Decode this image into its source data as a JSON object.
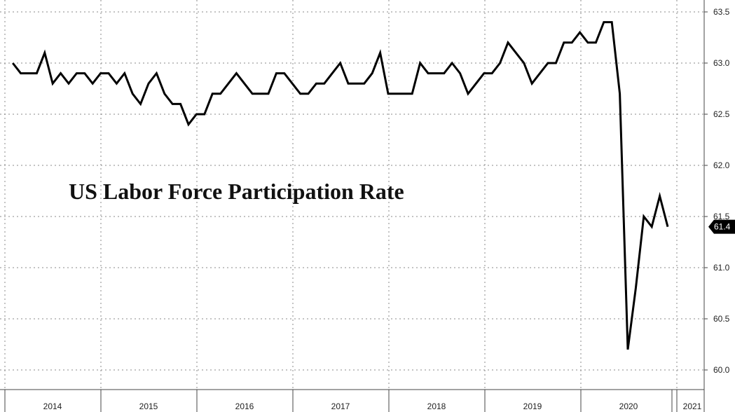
{
  "chart_data": {
    "type": "line",
    "title": "US Labor Force Participation Rate",
    "xlabel": "",
    "ylabel": "",
    "ylim": [
      59.95,
      63.6
    ],
    "yticks": [
      "60.0",
      "60.5",
      "61.0",
      "61.5",
      "62.0",
      "62.5",
      "63.0",
      "63.5"
    ],
    "xtick_labels": [
      "2014",
      "2015",
      "2016",
      "2017",
      "2018",
      "2019",
      "2020",
      "2021"
    ],
    "grid": true,
    "last_value_label": "61.4",
    "colors": {
      "line": "#000000",
      "grid": "#888888",
      "label_bg": "#000000"
    },
    "series": [
      {
        "x": [
          "2013-11",
          "2013-12",
          "2014-01",
          "2014-02",
          "2014-03",
          "2014-04",
          "2014-05",
          "2014-06",
          "2014-07",
          "2014-08",
          "2014-09",
          "2014-10",
          "2014-11",
          "2014-12",
          "2015-01",
          "2015-02",
          "2015-03",
          "2015-04",
          "2015-05",
          "2015-06",
          "2015-07",
          "2015-08",
          "2015-09",
          "2015-10",
          "2015-11",
          "2015-12",
          "2016-01",
          "2016-02",
          "2016-03",
          "2016-04",
          "2016-05",
          "2016-06",
          "2016-07",
          "2016-08",
          "2016-09",
          "2016-10",
          "2016-11",
          "2016-12",
          "2017-01",
          "2017-02",
          "2017-03",
          "2017-04",
          "2017-05",
          "2017-06",
          "2017-07",
          "2017-08",
          "2017-09",
          "2017-10",
          "2017-11",
          "2017-12",
          "2018-01",
          "2018-02",
          "2018-03",
          "2018-04",
          "2018-05",
          "2018-06",
          "2018-07",
          "2018-08",
          "2018-09",
          "2018-10",
          "2018-11",
          "2018-12",
          "2019-01",
          "2019-02",
          "2019-03",
          "2019-04",
          "2019-05",
          "2019-06",
          "2019-07",
          "2019-08",
          "2019-09",
          "2019-10",
          "2019-11",
          "2019-12",
          "2020-01",
          "2020-02",
          "2020-03",
          "2020-04",
          "2020-05",
          "2020-06",
          "2020-07",
          "2020-08",
          "2020-09"
        ],
        "values": [
          63.0,
          62.9,
          62.9,
          62.9,
          63.1,
          62.8,
          62.9,
          62.8,
          62.9,
          62.9,
          62.8,
          62.9,
          62.9,
          62.8,
          62.9,
          62.7,
          62.6,
          62.8,
          62.9,
          62.7,
          62.6,
          62.6,
          62.4,
          62.5,
          62.5,
          62.7,
          62.7,
          62.8,
          62.9,
          62.8,
          62.7,
          62.7,
          62.7,
          62.9,
          62.9,
          62.8,
          62.7,
          62.7,
          62.8,
          62.8,
          62.9,
          63.0,
          62.8,
          62.8,
          62.8,
          62.9,
          63.1,
          62.7,
          62.7,
          62.7,
          62.7,
          63.0,
          62.9,
          62.9,
          62.9,
          63.0,
          62.9,
          62.7,
          62.8,
          62.9,
          62.9,
          63.0,
          63.2,
          63.1,
          63.0,
          62.8,
          62.9,
          63.0,
          63.0,
          63.2,
          63.2,
          63.3,
          63.2,
          63.2,
          63.4,
          63.4,
          62.7,
          60.2,
          60.8,
          61.5,
          61.4,
          61.7,
          61.4
        ]
      }
    ]
  }
}
